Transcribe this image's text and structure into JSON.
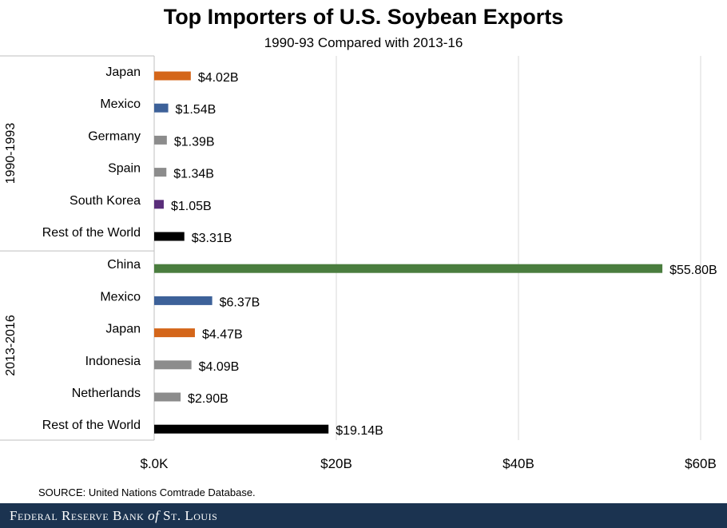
{
  "title": "Top Importers of U.S. Soybean Exports",
  "subtitle": "1990-93 Compared with 2013-16",
  "source": "SOURCE: United Nations Comtrade Database.",
  "footer": {
    "part1": "Federal Reserve Bank ",
    "of": "of",
    "part2": " St. Louis"
  },
  "chart_data": {
    "type": "bar",
    "orientation": "horizontal",
    "xlim": [
      0,
      60
    ],
    "x_ticks": [
      0,
      20,
      40,
      60
    ],
    "x_tick_labels": [
      "$.0K",
      "$20B",
      "$40B",
      "$60B"
    ],
    "grid": true,
    "groups": [
      {
        "name": "1990-1993",
        "bars": [
          {
            "label": "Japan",
            "value": 4.02,
            "value_label": "$4.02B",
            "color": "#d4661a"
          },
          {
            "label": "Mexico",
            "value": 1.54,
            "value_label": "$1.54B",
            "color": "#3d6199"
          },
          {
            "label": "Germany",
            "value": 1.39,
            "value_label": "$1.39B",
            "color": "#8c8c8c"
          },
          {
            "label": "Spain",
            "value": 1.34,
            "value_label": "$1.34B",
            "color": "#8c8c8c"
          },
          {
            "label": "South Korea",
            "value": 1.05,
            "value_label": "$1.05B",
            "color": "#5a2e7a"
          },
          {
            "label": "Rest of the World",
            "value": 3.31,
            "value_label": "$3.31B",
            "color": "#000000"
          }
        ]
      },
      {
        "name": "2013-2016",
        "bars": [
          {
            "label": "China",
            "value": 55.8,
            "value_label": "$55.80B",
            "color": "#4a7d3e"
          },
          {
            "label": "Mexico",
            "value": 6.37,
            "value_label": "$6.37B",
            "color": "#3d6199"
          },
          {
            "label": "Japan",
            "value": 4.47,
            "value_label": "$4.47B",
            "color": "#d4661a"
          },
          {
            "label": "Indonesia",
            "value": 4.09,
            "value_label": "$4.09B",
            "color": "#8c8c8c"
          },
          {
            "label": "Netherlands",
            "value": 2.9,
            "value_label": "$2.90B",
            "color": "#8c8c8c"
          },
          {
            "label": "Rest of the World",
            "value": 19.14,
            "value_label": "$19.14B",
            "color": "#000000"
          }
        ]
      }
    ]
  }
}
